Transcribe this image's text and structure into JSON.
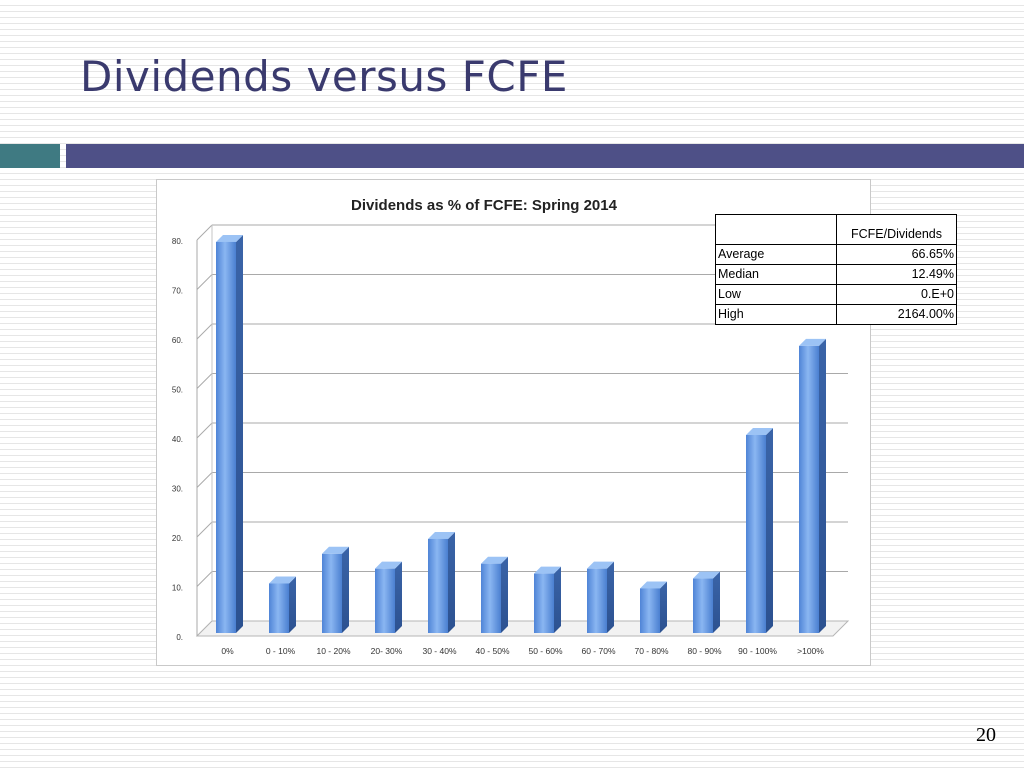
{
  "slide": {
    "title": "Dividends versus FCFE",
    "page_number": "20"
  },
  "stats_table": {
    "header": [
      "",
      "FCFE/Dividends"
    ],
    "rows": [
      {
        "label": "Average",
        "value": "66.65%"
      },
      {
        "label": "Median",
        "value": "12.49%"
      },
      {
        "label": "Low",
        "value": "0.E+0"
      },
      {
        "label": "High",
        "value": "2164.00%"
      }
    ]
  },
  "chart_data": {
    "type": "bar",
    "title": "Dividends as % of  FCFE: Spring 2014",
    "categories": [
      "0%",
      "0 - 10%",
      "10 - 20%",
      "20- 30%",
      "30 - 40%",
      "40 - 50%",
      "50 - 60%",
      "60 - 70%",
      "70 - 80%",
      "80 - 90%",
      "90 - 100%",
      ">100%"
    ],
    "values": [
      79,
      10,
      16,
      13,
      19,
      14,
      12,
      13,
      9,
      11,
      40,
      58
    ],
    "ylim": [
      0,
      80
    ],
    "yticks": [
      0,
      10,
      20,
      30,
      40,
      50,
      60,
      70,
      80
    ],
    "ytick_labels": [
      "0.",
      "10.",
      "20.",
      "30.",
      "40.",
      "50.",
      "60.",
      "70.",
      "80."
    ],
    "xlabel": "",
    "ylabel": "",
    "grid": true,
    "bar_color": "#5b8fd9"
  }
}
